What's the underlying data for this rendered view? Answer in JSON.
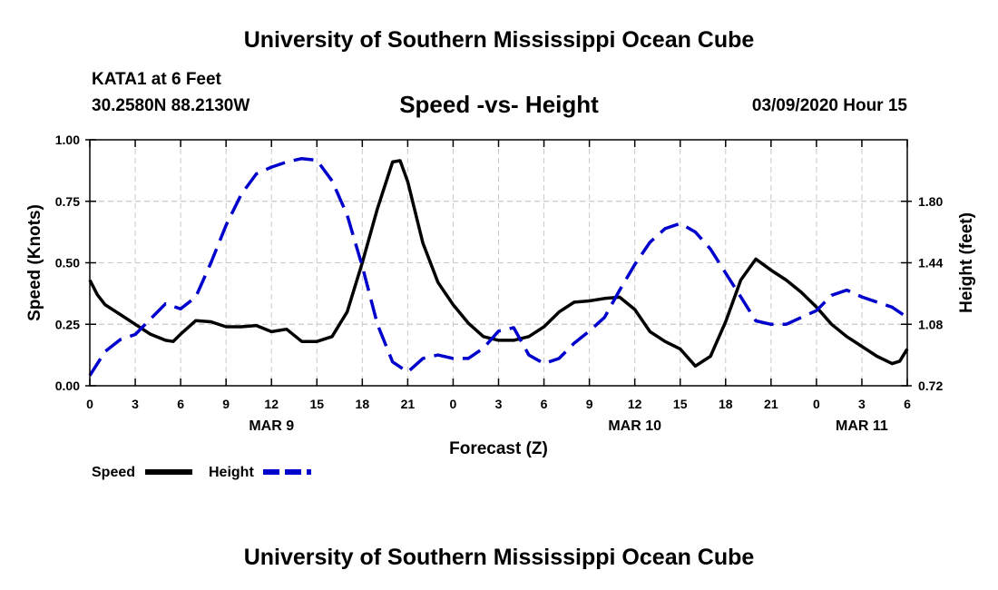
{
  "header": {
    "title": "University of Southern Mississippi Ocean Cube",
    "station": "KATA1 at 6 Feet",
    "coords": "30.2580N 88.2130W",
    "subtitle": "Speed -vs- Height",
    "run": "03/09/2020 Hour 15"
  },
  "footer": {
    "title": "University of Southern Mississippi Ocean Cube"
  },
  "chart_data": {
    "type": "line",
    "title": "Speed -vs- Height",
    "xlabel": "Forecast (Z)",
    "ylabel": "Speed (Knots)",
    "y2label": "Height (feet)",
    "grid": true,
    "x_unit": "hours since 03/09 00Z",
    "xlim": [
      0,
      54
    ],
    "ylim": [
      0,
      1.0
    ],
    "y2lim": [
      0.72,
      2.16
    ],
    "x_ticks": [
      0,
      3,
      6,
      9,
      12,
      15,
      18,
      21,
      24,
      27,
      30,
      33,
      36,
      39,
      42,
      45,
      48,
      51,
      54
    ],
    "x_tick_labels": [
      "0",
      "3",
      "6",
      "9",
      "12",
      "15",
      "18",
      "21",
      "0",
      "3",
      "6",
      "9",
      "12",
      "15",
      "18",
      "21",
      "0",
      "3",
      "6"
    ],
    "y_ticks": [
      0,
      0.25,
      0.5,
      0.75,
      1.0
    ],
    "y_tick_labels": [
      "0.00",
      "0.25",
      "0.50",
      "0.75",
      "1.00"
    ],
    "y2_ticks": [
      0.72,
      1.08,
      1.44,
      1.8
    ],
    "y2_tick_labels": [
      "0.72",
      "1.08",
      "1.44",
      "1.80"
    ],
    "date_labels": [
      {
        "x": 12,
        "label": "MAR 9"
      },
      {
        "x": 36,
        "label": "MAR 10"
      },
      {
        "x": 51,
        "label": "MAR 11"
      }
    ],
    "legend": {
      "placement": "bottom-left",
      "speed_label": "Speed",
      "height_label": "Height"
    },
    "series": [
      {
        "name": "Speed",
        "axis": "left",
        "color": "#000000",
        "style": "solid",
        "x": [
          0,
          0.5,
          1,
          2,
          3,
          4,
          5,
          5.5,
          6,
          7,
          8,
          9,
          10,
          11,
          12,
          13,
          14,
          15,
          16,
          17,
          18,
          19,
          20,
          20.5,
          21,
          22,
          23,
          24,
          25,
          26,
          27,
          28,
          29,
          30,
          31,
          32,
          33,
          34,
          35,
          36,
          37,
          38,
          39,
          40,
          41,
          42,
          43,
          44,
          45,
          46,
          47,
          48,
          49,
          50,
          51,
          52,
          53,
          53.5,
          54
        ],
        "values": [
          0.43,
          0.37,
          0.33,
          0.29,
          0.25,
          0.21,
          0.185,
          0.18,
          0.21,
          0.265,
          0.26,
          0.24,
          0.24,
          0.245,
          0.22,
          0.23,
          0.18,
          0.18,
          0.2,
          0.3,
          0.5,
          0.72,
          0.91,
          0.915,
          0.83,
          0.58,
          0.42,
          0.33,
          0.255,
          0.2,
          0.185,
          0.185,
          0.2,
          0.24,
          0.3,
          0.34,
          0.345,
          0.355,
          0.36,
          0.31,
          0.22,
          0.18,
          0.15,
          0.08,
          0.12,
          0.26,
          0.43,
          0.515,
          0.47,
          0.43,
          0.38,
          0.32,
          0.25,
          0.2,
          0.16,
          0.12,
          0.09,
          0.1,
          0.15
        ]
      },
      {
        "name": "Height",
        "axis": "right",
        "color": "#0000cc",
        "style": "dashed",
        "x": [
          0,
          1,
          2,
          3,
          4,
          5,
          6,
          7,
          8,
          9,
          10,
          11,
          12,
          13,
          14,
          15,
          16,
          17,
          18,
          19,
          20,
          21,
          22,
          23,
          24,
          25,
          26,
          27,
          28,
          29,
          30,
          31,
          32,
          33,
          34,
          35,
          36,
          37,
          38,
          39,
          40,
          41,
          42,
          43,
          44,
          45,
          46,
          47,
          48,
          49,
          50,
          51,
          52,
          53,
          54
        ],
        "values": [
          0.78,
          0.92,
          0.99,
          1.02,
          1.11,
          1.2,
          1.17,
          1.24,
          1.44,
          1.66,
          1.84,
          1.96,
          2.0,
          2.03,
          2.05,
          2.04,
          1.92,
          1.72,
          1.42,
          1.08,
          0.86,
          0.8,
          0.88,
          0.9,
          0.88,
          0.88,
          0.94,
          1.04,
          1.06,
          0.9,
          0.85,
          0.88,
          0.97,
          1.04,
          1.12,
          1.28,
          1.43,
          1.56,
          1.64,
          1.67,
          1.62,
          1.52,
          1.38,
          1.24,
          1.1,
          1.08,
          1.08,
          1.12,
          1.16,
          1.25,
          1.28,
          1.24,
          1.21,
          1.18,
          1.12
        ]
      }
    ]
  }
}
